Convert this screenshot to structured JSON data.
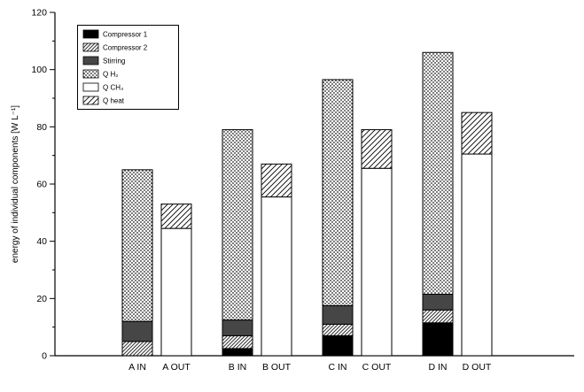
{
  "chart_data": {
    "type": "bar",
    "stacked": true,
    "title": "",
    "ylabel": "energy of individual components [W L⁻¹]",
    "xlabel": "",
    "ylim": [
      0,
      120
    ],
    "yticks": [
      0,
      20,
      40,
      60,
      80,
      100,
      120
    ],
    "minor_tick_step": 10,
    "grid": false,
    "legend_position": "top-left",
    "categories": [
      "A IN",
      "A OUT",
      "B IN",
      "B OUT",
      "C IN",
      "C OUT",
      "D IN",
      "D OUT"
    ],
    "series": [
      {
        "name": "Compressor 1",
        "pattern": "solid-black",
        "values": [
          0,
          0,
          2.5,
          0,
          7,
          0,
          11.5,
          0
        ]
      },
      {
        "name": "Compressor 2",
        "pattern": "hatch-dark",
        "values": [
          5,
          0,
          4.5,
          0,
          4,
          0,
          4.5,
          0
        ]
      },
      {
        "name": "Stirring",
        "pattern": "solid-dark",
        "values": [
          7,
          0,
          5.5,
          0,
          6.5,
          0,
          5.5,
          0
        ]
      },
      {
        "name": "Q H₂",
        "pattern": "dots",
        "values": [
          53,
          0,
          66.5,
          0,
          79,
          0,
          84.5,
          0
        ]
      },
      {
        "name": "Q CH₄",
        "pattern": "white",
        "values": [
          0,
          44.5,
          0,
          55.5,
          0,
          65.5,
          0,
          70.5
        ]
      },
      {
        "name": "Q heat",
        "pattern": "hatch-light",
        "values": [
          0,
          8.5,
          0,
          11.5,
          0,
          13.5,
          0,
          14.5
        ]
      }
    ],
    "totals": {
      "A IN": 65,
      "A OUT": 53,
      "B IN": 79,
      "B OUT": 67,
      "C IN": 96.5,
      "C OUT": 79,
      "D IN": 106,
      "D OUT": 85
    },
    "colors": {
      "axis": "#000000",
      "text": "#000000",
      "background": "#ffffff"
    }
  }
}
